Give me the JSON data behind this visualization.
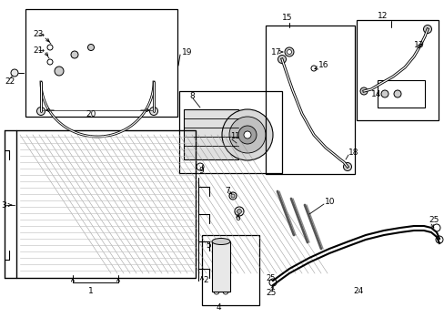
{
  "bg_color": "#ffffff",
  "line_color": "#000000",
  "gray_color": "#999999",
  "figsize": [
    4.89,
    3.6
  ],
  "dpi": 100,
  "xlim": [
    0,
    489
  ],
  "ylim": [
    360,
    0
  ]
}
